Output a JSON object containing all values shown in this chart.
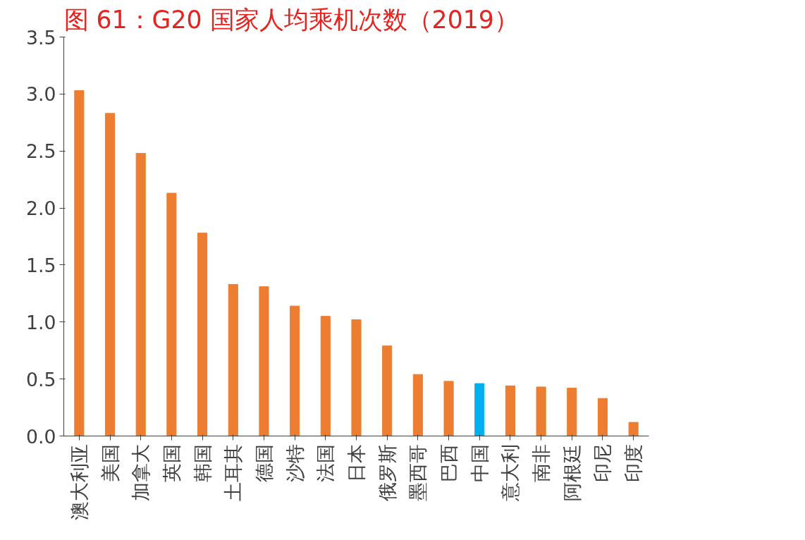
{
  "chart_data": {
    "type": "bar",
    "title": "图 61：G20 国家人均乘机次数（2019）",
    "categories": [
      "澳大利亚",
      "美国",
      "加拿大",
      "英国",
      "韩国",
      "土耳其",
      "德国",
      "沙特",
      "法国",
      "日本",
      "俄罗斯",
      "墨西哥",
      "巴西",
      "中国",
      "意大利",
      "南非",
      "阿根廷",
      "印尼",
      "印度"
    ],
    "values": [
      3.03,
      2.83,
      2.48,
      2.13,
      1.78,
      1.33,
      1.31,
      1.14,
      1.05,
      1.02,
      0.79,
      0.54,
      0.48,
      0.46,
      0.44,
      0.43,
      0.42,
      0.33,
      0.12
    ],
    "colors": [
      "#ed7d31",
      "#ed7d31",
      "#ed7d31",
      "#ed7d31",
      "#ed7d31",
      "#ed7d31",
      "#ed7d31",
      "#ed7d31",
      "#ed7d31",
      "#ed7d31",
      "#ed7d31",
      "#ed7d31",
      "#ed7d31",
      "#00b0f0",
      "#ed7d31",
      "#ed7d31",
      "#ed7d31",
      "#ed7d31",
      "#ed7d31"
    ],
    "ylim": [
      0,
      3.5
    ],
    "yticks": [
      {
        "value": 0,
        "label": "0.0"
      },
      {
        "value": 0.5,
        "label": "0.5"
      },
      {
        "value": 1,
        "label": "1.0"
      },
      {
        "value": 1.5,
        "label": "1.5"
      },
      {
        "value": 2,
        "label": "2.0"
      },
      {
        "value": 2.5,
        "label": "2.5"
      },
      {
        "value": 3,
        "label": "3.0"
      },
      {
        "value": 3.5,
        "label": "3.5"
      }
    ],
    "grid": false
  }
}
